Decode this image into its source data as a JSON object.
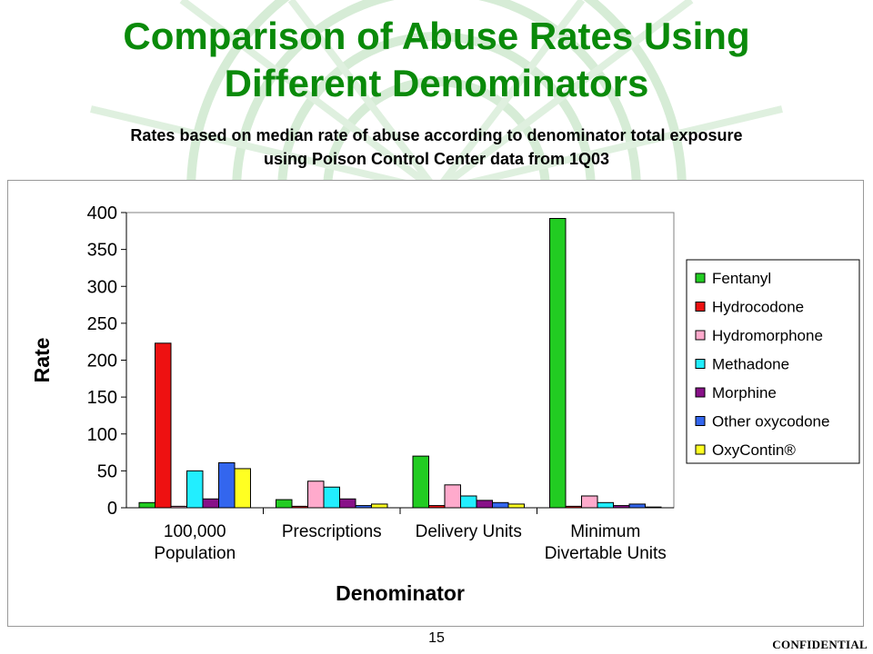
{
  "slide": {
    "title_line1": "Comparison of Abuse Rates Using",
    "title_line2": "Different Denominators",
    "subtitle_line1": "Rates based on median rate of abuse according to denominator total exposure",
    "subtitle_line2": "using Poison Control Center data from 1Q03",
    "page_number": "15",
    "confidential": "CONFIDENTIAL"
  },
  "colors": {
    "title": "#0a8a0a",
    "background_lines": "#cfe8cf"
  },
  "chart_data": {
    "type": "bar",
    "xlabel": "Denominator",
    "ylabel": "Rate",
    "ylim": [
      0,
      400
    ],
    "yticks": [
      "0",
      "50",
      "100",
      "150",
      "200",
      "250",
      "300",
      "350",
      "400"
    ],
    "grid": false,
    "legend_position": "right",
    "categories": [
      [
        "100,000",
        "Population"
      ],
      [
        "Prescriptions"
      ],
      [
        "Delivery Units"
      ],
      [
        "Minimum",
        "Divertable Units"
      ]
    ],
    "series": [
      {
        "name": "Fentanyl",
        "color": "#22cc22",
        "values": [
          7,
          11,
          70,
          392
        ]
      },
      {
        "name": "Hydrocodone",
        "color": "#ee1111",
        "values": [
          223,
          2,
          3,
          2
        ]
      },
      {
        "name": "Hydromorphone",
        "color": "#ffaacc",
        "values": [
          2,
          36,
          31,
          16
        ]
      },
      {
        "name": "Methadone",
        "color": "#22eeff",
        "values": [
          50,
          28,
          16,
          7
        ]
      },
      {
        "name": "Morphine",
        "color": "#881188",
        "values": [
          12,
          12,
          10,
          3
        ]
      },
      {
        "name": "Other oxycodone",
        "color": "#3366ee",
        "values": [
          61,
          3,
          7,
          5
        ]
      },
      {
        "name": "OxyContin®",
        "color": "#ffff22",
        "values": [
          53,
          5,
          5,
          1
        ]
      }
    ]
  }
}
